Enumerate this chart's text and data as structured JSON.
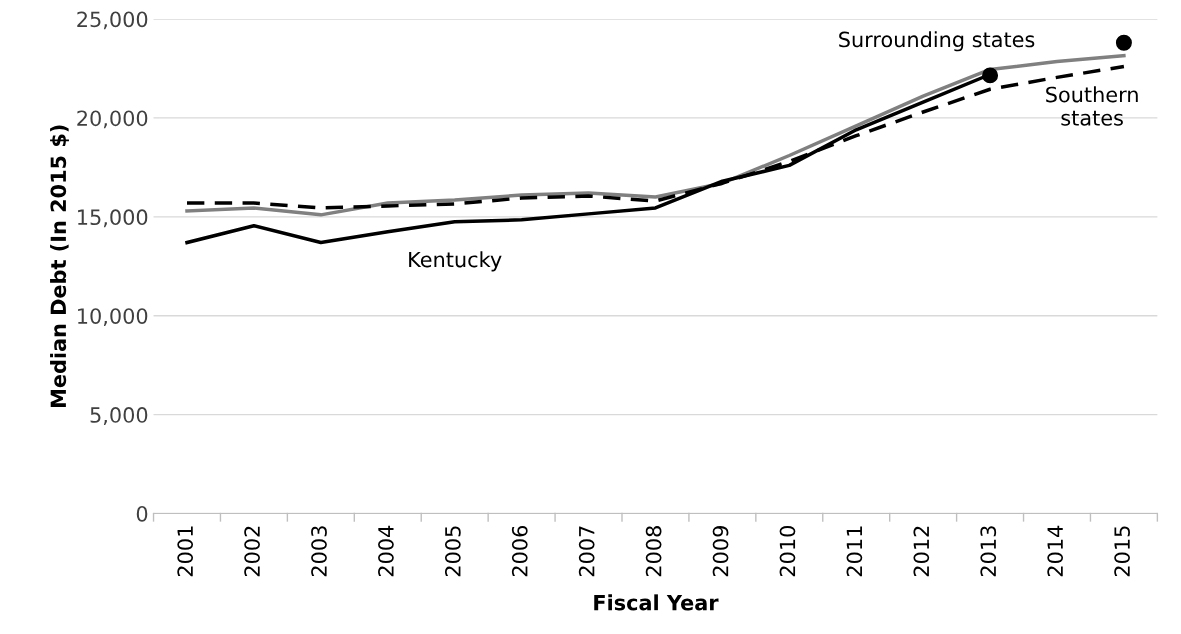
{
  "chart_data": {
    "type": "line",
    "xlabel": "Fiscal Year",
    "ylabel": "Median Debt (In 2015 $)",
    "categories": [
      "2001",
      "2002",
      "2003",
      "2004",
      "2005",
      "2006",
      "2007",
      "2008",
      "2009",
      "2010",
      "2011",
      "2012",
      "2013",
      "2014",
      "2015"
    ],
    "series": [
      {
        "color": "#808080",
        "line_style": "solid",
        "values": [
          15300,
          15450,
          15100,
          15700,
          15850,
          16100,
          16200,
          16000,
          16700,
          18100,
          19600,
          21100,
          22450,
          22850,
          23150
        ]
      },
      {
        "color": "#000000",
        "line_style": "dashed",
        "values": [
          15700,
          15700,
          15450,
          15550,
          15650,
          15950,
          16050,
          15800,
          16700,
          17800,
          19100,
          20300,
          21450,
          22050,
          22600
        ]
      },
      {
        "color": "#000000",
        "line_style": "solid",
        "values": [
          13700,
          14550,
          13700,
          14250,
          14750,
          14850,
          15150,
          15450,
          16800,
          17600,
          19400,
          20800,
          22200,
          null,
          null
        ]
      },
      {
        "type": "scatter",
        "color": "#000000",
        "marker": "circle",
        "values": [
          null,
          null,
          null,
          null,
          null,
          null,
          null,
          null,
          null,
          null,
          null,
          null,
          22150,
          null,
          23800
        ]
      }
    ],
    "ylim": [
      0,
      25000
    ],
    "yticks": [
      {
        "value": 0,
        "label": "0"
      },
      {
        "value": 5000,
        "label": "5,000"
      },
      {
        "value": 10000,
        "label": "10,000"
      },
      {
        "value": 15000,
        "label": "15,000"
      },
      {
        "value": 20000,
        "label": "20,000"
      },
      {
        "value": 25000,
        "label": "25,000"
      }
    ],
    "grid": "y",
    "annotations": [
      "Surrounding states",
      "Kentucky",
      "Southern\nstates"
    ]
  }
}
